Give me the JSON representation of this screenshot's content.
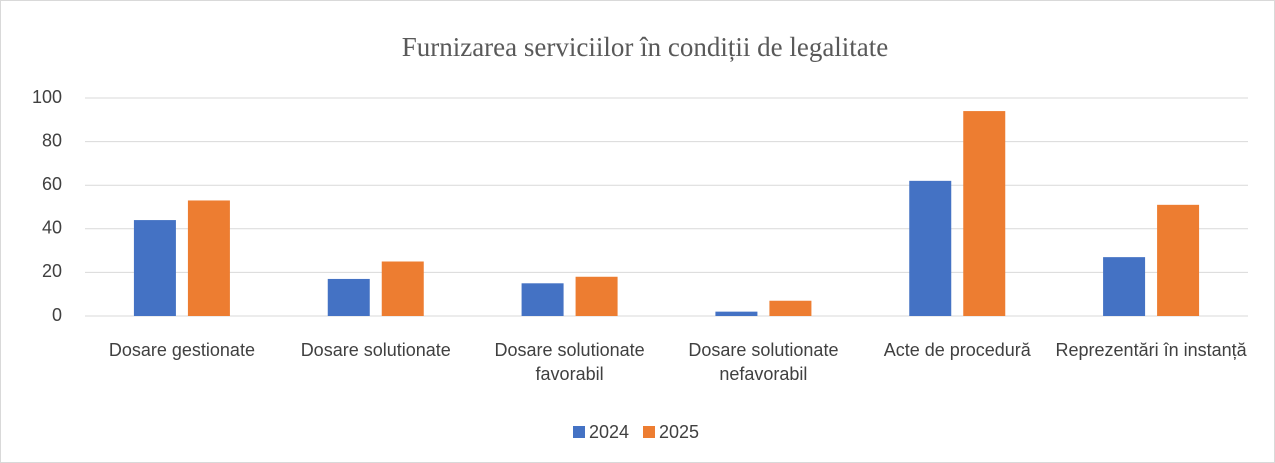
{
  "chart_data": {
    "type": "bar",
    "title": "Furnizarea serviciilor în condiții de legalitate",
    "categories": [
      "Dosare gestionate",
      "Dosare solutionate",
      "Dosare solutionate favorabil",
      "Dosare solutionate nefavorabil",
      "Acte de procedură",
      "Reprezentări în instanță"
    ],
    "series": [
      {
        "name": "2024",
        "color": "#4472c4",
        "values": [
          44,
          17,
          15,
          2,
          62,
          27
        ]
      },
      {
        "name": "2025",
        "color": "#ed7d31",
        "values": [
          53,
          25,
          18,
          7,
          94,
          51
        ]
      }
    ],
    "ylim": [
      0,
      100
    ],
    "yticks": [
      0,
      20,
      40,
      60,
      80,
      100
    ],
    "grid": true,
    "legend": "bottom"
  }
}
